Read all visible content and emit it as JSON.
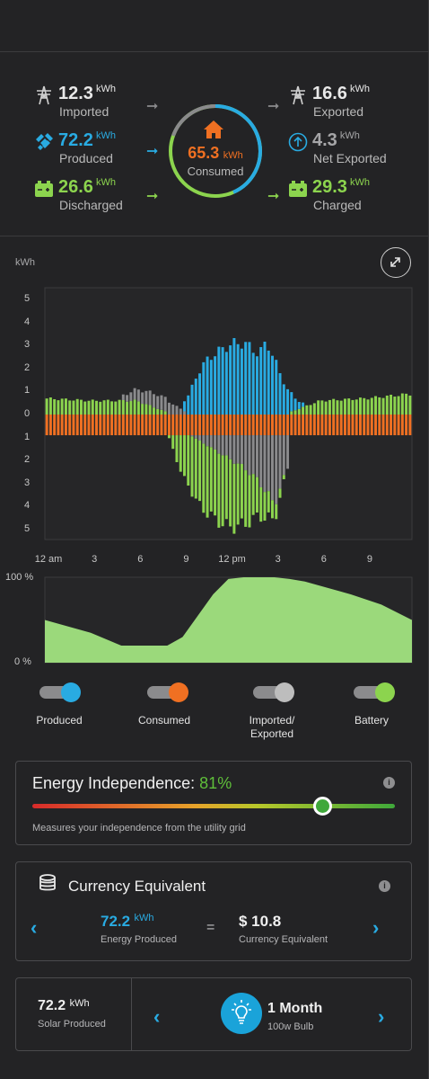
{
  "summary": {
    "imported": {
      "value": "12.3",
      "unit": "kWh",
      "label": "Imported"
    },
    "produced": {
      "value": "72.2",
      "unit": "kWh",
      "label": "Produced"
    },
    "discharged": {
      "value": "26.6",
      "unit": "kWh",
      "label": "Discharged"
    },
    "exported": {
      "value": "16.6",
      "unit": "kWh",
      "label": "Exported"
    },
    "net_exported": {
      "value": "4.3",
      "unit": "kWh",
      "label": "Net Exported"
    },
    "charged": {
      "value": "29.3",
      "unit": "kWh",
      "label": "Charged"
    },
    "consumed": {
      "value": "65.3",
      "unit": "kWh",
      "label": "Consumed"
    }
  },
  "colors": {
    "produced": "#29abe2",
    "consumed": "#f07022",
    "grid": "#8a8a8c",
    "battery": "#8cd44e",
    "soc_fill": "#9bd97b"
  },
  "chart": {
    "unit_label": "kWh",
    "expand_icon": "expand-icon",
    "y_ticks": [
      "5",
      "4",
      "3",
      "2",
      "1",
      "0",
      "1",
      "2",
      "3",
      "4",
      "5"
    ],
    "x_ticks": [
      "12 am",
      "3",
      "6",
      "9",
      "12 pm",
      "3",
      "6",
      "9"
    ]
  },
  "chart_data": [
    {
      "type": "bar",
      "ylabel": "kWh",
      "ylim": [
        -5,
        5
      ],
      "x_range": [
        0,
        24
      ],
      "series": [
        {
          "name": "Produced",
          "color": "#29abe2",
          "x": [
            9,
            9.5,
            10,
            10.5,
            11,
            11.5,
            12,
            12.5,
            13,
            13.5,
            14,
            14.5,
            15,
            15.5,
            16,
            16.5,
            17
          ],
          "y": [
            0.3,
            1.0,
            1.8,
            2.3,
            2.6,
            2.8,
            3.0,
            3.1,
            3.1,
            2.9,
            2.6,
            3.2,
            2.4,
            1.6,
            0.9,
            0.4,
            0.1
          ]
        },
        {
          "name": "Consumed",
          "color": "#f07022",
          "x": [
            0,
            6,
            12,
            18,
            24
          ],
          "y": [
            -0.9,
            -0.9,
            -0.9,
            -0.9,
            -0.9
          ]
        },
        {
          "name": "Imported/Exported",
          "color": "#8a8a8c",
          "x": [
            5,
            6,
            7,
            8,
            13,
            14,
            15,
            16
          ],
          "y": [
            0.2,
            0.5,
            0.6,
            0.6,
            -1.4,
            -2.0,
            -3.0,
            -1.2
          ]
        },
        {
          "name": "Battery",
          "color": "#8cd44e",
          "x": [
            0,
            3,
            6,
            8,
            9,
            10,
            11,
            12,
            13,
            14,
            16,
            18,
            21,
            24
          ],
          "y": [
            0.7,
            0.6,
            0.6,
            0.1,
            -1.8,
            -2.8,
            -3.0,
            -3.0,
            -2.5,
            -1.5,
            0.1,
            0.6,
            0.7,
            0.9
          ]
        }
      ]
    },
    {
      "type": "area",
      "y_ticks": [
        "100 %",
        "0 %"
      ],
      "ylim": [
        0,
        100
      ],
      "x": [
        0,
        3,
        5,
        8,
        9,
        10,
        11,
        12,
        13,
        14,
        15,
        16,
        17,
        18,
        20,
        22,
        24
      ],
      "y": [
        50,
        35,
        20,
        20,
        30,
        55,
        80,
        98,
        100,
        100,
        100,
        98,
        95,
        90,
        80,
        68,
        50
      ]
    }
  ],
  "toggles": [
    {
      "label": "Produced",
      "color": "#29abe2"
    },
    {
      "label": "Consumed",
      "color": "#f07022"
    },
    {
      "label": "Imported/",
      "label2": "Exported",
      "color": "#bdbdbd"
    },
    {
      "label": "Battery",
      "color": "#8cd44e"
    }
  ],
  "independence": {
    "title": "Energy Independence:",
    "value": "81%",
    "value_fraction": 0.8,
    "description": "Measures your independence from the utility grid"
  },
  "currency": {
    "title": "Currency Equivalent",
    "energy_value": "72.2",
    "energy_unit": "kWh",
    "energy_label": "Energy Produced",
    "equals": "=",
    "currency_value": "$ 10.8",
    "currency_label": "Currency Equivalent"
  },
  "bulb": {
    "solar_value": "72.2",
    "solar_unit": "kWh",
    "solar_label": "Solar Produced",
    "duration": "1 Month",
    "bulb_label": "100w Bulb"
  }
}
